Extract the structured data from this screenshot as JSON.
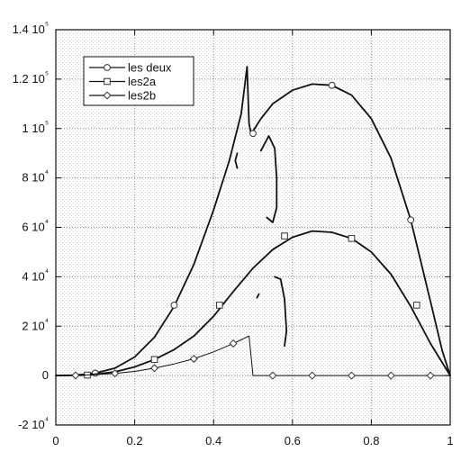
{
  "chart_data": {
    "type": "line",
    "title": "",
    "xlabel": "",
    "ylabel": "",
    "xlim": [
      0,
      1
    ],
    "ylim": [
      -20000,
      140000
    ],
    "grid": true,
    "legend": "top-left",
    "x_ticks": [
      {
        "value": 0,
        "label": "0"
      },
      {
        "value": 0.2,
        "label": "0.2"
      },
      {
        "value": 0.4,
        "label": "0.4"
      },
      {
        "value": 0.6,
        "label": "0.6"
      },
      {
        "value": 0.8,
        "label": "0.8"
      },
      {
        "value": 1,
        "label": "1"
      }
    ],
    "y_ticks": [
      {
        "value": -20000,
        "label": "-2 10⁴"
      },
      {
        "value": 0,
        "label": "0"
      },
      {
        "value": 20000,
        "label": "2 10⁴"
      },
      {
        "value": 40000,
        "label": "4 10⁴"
      },
      {
        "value": 60000,
        "label": "6 10⁴"
      },
      {
        "value": 80000,
        "label": "8 10⁴"
      },
      {
        "value": 100000,
        "label": "1 10⁵"
      },
      {
        "value": 120000,
        "label": "1.2 10⁵"
      },
      {
        "value": 140000,
        "label": "1.4 10⁵"
      }
    ],
    "series": [
      {
        "name": "les deux",
        "marker": "circle",
        "color": "#111111",
        "segments": [
          [
            [
              0,
              0
            ],
            [
              0.05,
              200
            ],
            [
              0.1,
              1000
            ],
            [
              0.15,
              3000
            ],
            [
              0.2,
              7500
            ],
            [
              0.25,
              15500
            ],
            [
              0.3,
              28000
            ],
            [
              0.35,
              45000
            ],
            [
              0.4,
              67000
            ],
            [
              0.44,
              87000
            ],
            [
              0.47,
              106000
            ],
            [
              0.485,
              125000
            ],
            [
              0.49,
              102000
            ],
            [
              0.495,
              98000
            ]
          ],
          [
            [
              0.5,
              99000
            ],
            [
              0.52,
              104000
            ],
            [
              0.55,
              110000
            ],
            [
              0.6,
              115500
            ],
            [
              0.65,
              118000
            ],
            [
              0.7,
              117500
            ],
            [
              0.75,
              113500
            ],
            [
              0.8,
              104000
            ],
            [
              0.85,
              88000
            ],
            [
              0.9,
              63000
            ],
            [
              0.95,
              30000
            ],
            [
              0.98,
              10000
            ],
            [
              1,
              0
            ]
          ],
          [
            [
              0.46,
              90000
            ],
            [
              0.455,
              87000
            ],
            [
              0.46,
              84000
            ]
          ],
          [
            [
              0.52,
              91000
            ],
            [
              0.54,
              97000
            ],
            [
              0.555,
              92000
            ],
            [
              0.56,
              80000
            ],
            [
              0.56,
              68000
            ],
            [
              0.55,
              62000
            ],
            [
              0.535,
              64000
            ]
          ]
        ],
        "markers": [
          [
            0.1,
            1000
          ],
          [
            0.3,
            28500
          ],
          [
            0.5,
            98000
          ],
          [
            0.7,
            117500
          ],
          [
            0.9,
            63000
          ]
        ]
      },
      {
        "name": "les2a",
        "marker": "square",
        "color": "#111111",
        "segments": [
          [
            [
              0,
              0
            ],
            [
              0.08,
              200
            ],
            [
              0.15,
              1500
            ],
            [
              0.2,
              3500
            ],
            [
              0.25,
              6500
            ],
            [
              0.3,
              10500
            ],
            [
              0.35,
              16000
            ],
            [
              0.4,
              24000
            ],
            [
              0.45,
              34000
            ],
            [
              0.5,
              43500
            ],
            [
              0.55,
              51000
            ],
            [
              0.6,
              56000
            ],
            [
              0.65,
              58500
            ],
            [
              0.7,
              58000
            ],
            [
              0.75,
              55500
            ],
            [
              0.8,
              50000
            ],
            [
              0.85,
              41000
            ],
            [
              0.9,
              28000
            ],
            [
              0.95,
              13000
            ],
            [
              1,
              0
            ]
          ],
          [
            [
              0.555,
              40000
            ],
            [
              0.57,
              39000
            ],
            [
              0.58,
              31000
            ],
            [
              0.585,
              18000
            ],
            [
              0.58,
              12000
            ]
          ],
          [
            [
              0.515,
              33000
            ],
            [
              0.51,
              31500
            ]
          ]
        ],
        "markers": [
          [
            0.08,
            200
          ],
          [
            0.25,
            6500
          ],
          [
            0.415,
            28500
          ],
          [
            0.58,
            56500
          ],
          [
            0.75,
            55500
          ],
          [
            0.915,
            28500
          ]
        ]
      },
      {
        "name": "les2b",
        "marker": "diamond",
        "color": "#111111",
        "segments": [
          [
            [
              0,
              0
            ],
            [
              0.05,
              50
            ],
            [
              0.1,
              400
            ],
            [
              0.15,
              900
            ],
            [
              0.2,
              1700
            ],
            [
              0.25,
              3000
            ],
            [
              0.3,
              4700
            ],
            [
              0.35,
              6800
            ],
            [
              0.4,
              9600
            ],
            [
              0.45,
              13000
            ],
            [
              0.49,
              16000
            ],
            [
              0.5,
              0
            ],
            [
              0.6,
              0
            ],
            [
              0.7,
              0
            ],
            [
              0.8,
              0
            ],
            [
              0.9,
              0
            ],
            [
              1,
              0
            ]
          ]
        ],
        "markers": [
          [
            0.05,
            50
          ],
          [
            0.15,
            900
          ],
          [
            0.25,
            3000
          ],
          [
            0.35,
            6800
          ],
          [
            0.45,
            13000
          ],
          [
            0.55,
            0
          ],
          [
            0.65,
            0
          ],
          [
            0.75,
            0
          ],
          [
            0.85,
            0
          ],
          [
            0.95,
            0
          ]
        ]
      }
    ]
  }
}
